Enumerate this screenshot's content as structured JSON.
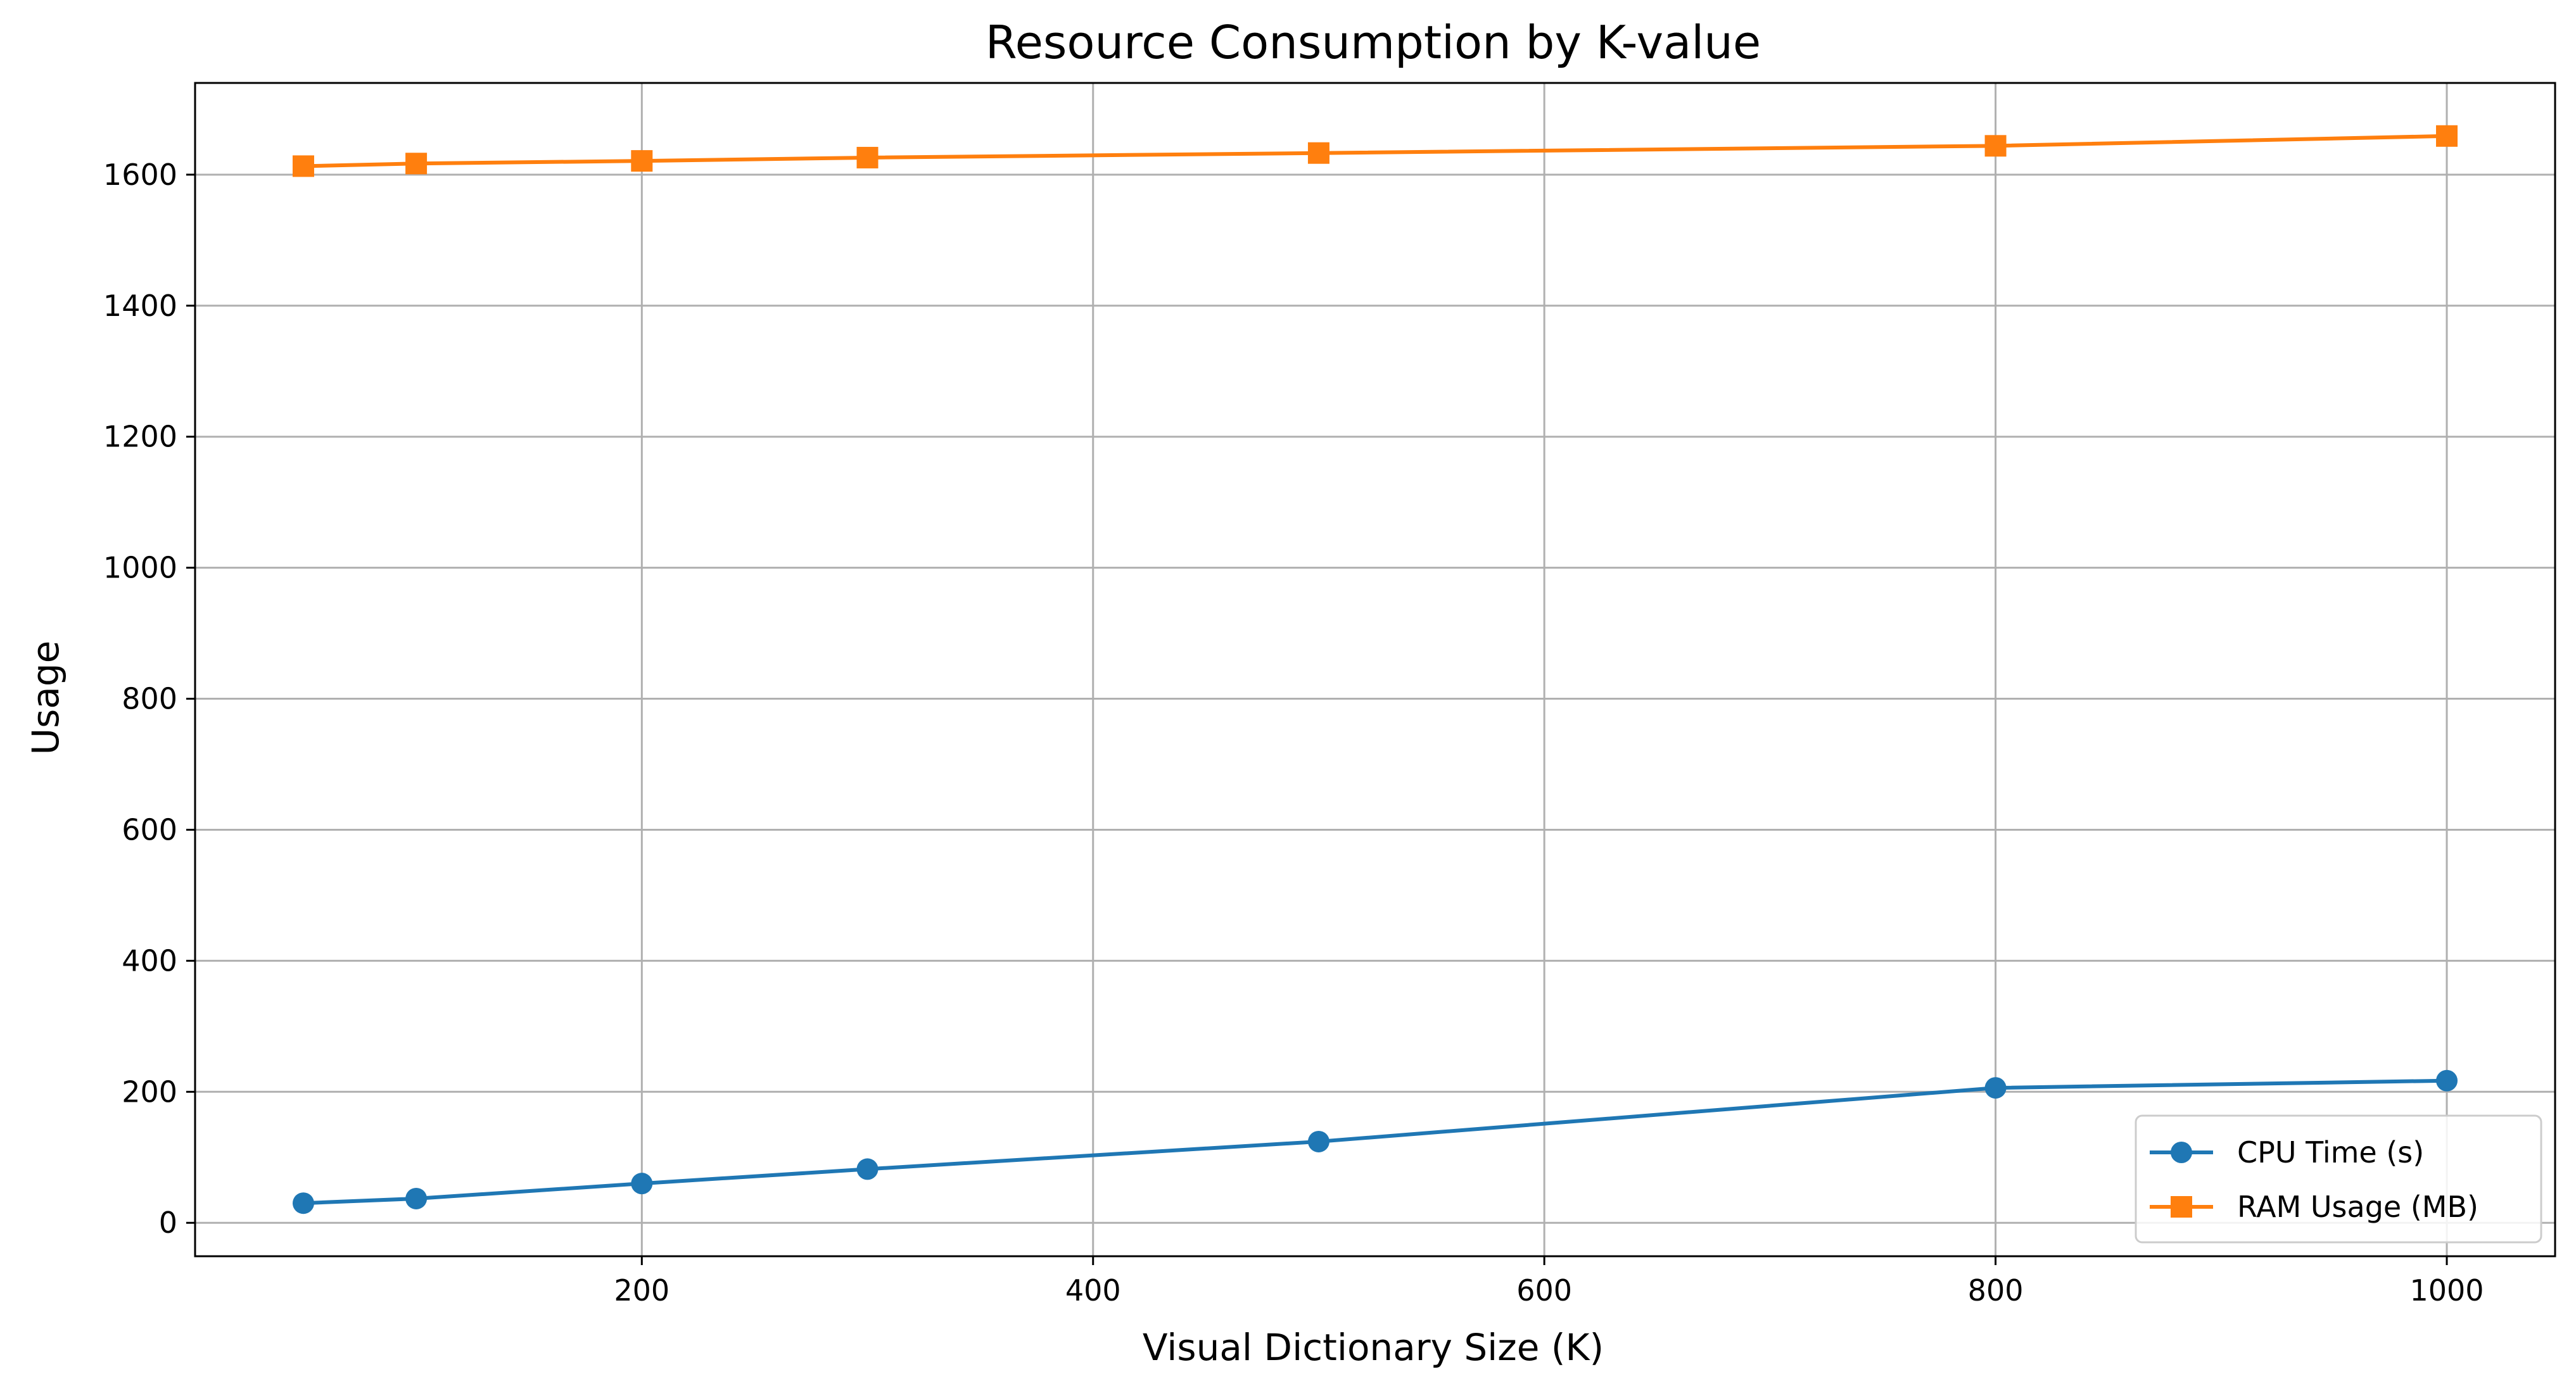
{
  "chart_data": {
    "type": "line",
    "title": "Resource Consumption by K-value",
    "xlabel": "Visual Dictionary Size (K)",
    "ylabel": "Usage",
    "x": [
      50,
      100,
      200,
      300,
      500,
      800,
      1000
    ],
    "xlim": [
      2,
      1048
    ],
    "ylim": [
      -51,
      1740
    ],
    "xticks": [
      200,
      400,
      600,
      800,
      1000
    ],
    "yticks": [
      0,
      200,
      400,
      600,
      800,
      1000,
      1200,
      1400,
      1600
    ],
    "grid": true,
    "legend_position": "lower-right",
    "series": [
      {
        "name": "CPU Time (s)",
        "marker": "circle",
        "color": "#1f77b4",
        "values": [
          30,
          37,
          60,
          82,
          124,
          206,
          217
        ]
      },
      {
        "name": "RAM Usage (MB)",
        "marker": "square",
        "color": "#ff7f0e",
        "values": [
          1613,
          1617,
          1621,
          1626,
          1633,
          1644,
          1659
        ]
      }
    ]
  }
}
